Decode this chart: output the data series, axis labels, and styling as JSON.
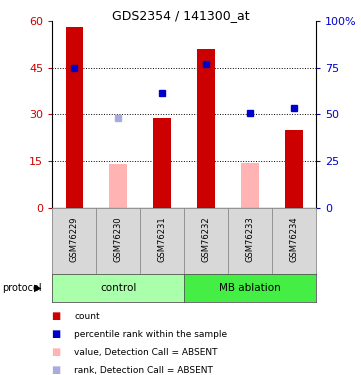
{
  "title": "GDS2354 / 141300_at",
  "samples": [
    "GSM76229",
    "GSM76230",
    "GSM76231",
    "GSM76232",
    "GSM76233",
    "GSM76234"
  ],
  "bar_values": [
    58,
    14,
    29,
    51,
    14.5,
    25
  ],
  "bar_absent": [
    false,
    true,
    false,
    false,
    true,
    false
  ],
  "rank_values": [
    45,
    29,
    37,
    46,
    30.5,
    32
  ],
  "rank_absent": [
    false,
    true,
    false,
    false,
    false,
    false
  ],
  "bar_color_present": "#cc0000",
  "bar_color_absent": "#ffb3b3",
  "rank_color_present": "#0000cc",
  "rank_color_absent": "#aaaadd",
  "ylim_left": [
    0,
    60
  ],
  "ylim_right": [
    0,
    100
  ],
  "yticks_left": [
    0,
    15,
    30,
    45,
    60
  ],
  "yticks_right": [
    0,
    25,
    50,
    75,
    100
  ],
  "ytick_labels_right": [
    "0",
    "25",
    "50",
    "75",
    "100%"
  ],
  "groups": [
    {
      "label": "control",
      "indices": [
        0,
        1,
        2
      ],
      "color": "#aaffaa"
    },
    {
      "label": "MB ablation",
      "indices": [
        3,
        4,
        5
      ],
      "color": "#44ee44"
    }
  ],
  "protocol_label": "protocol",
  "fig_width": 3.61,
  "fig_height": 3.75,
  "dpi": 100
}
